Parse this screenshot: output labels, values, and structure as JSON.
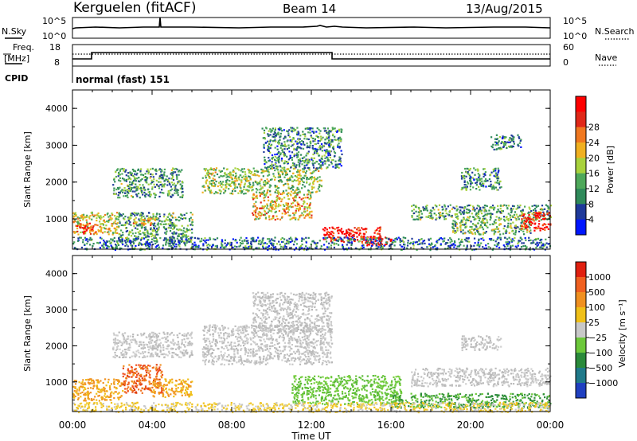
{
  "header": {
    "station": "Kerguelen (fitACF)",
    "beam": "Beam 14",
    "date": "13/Aug/2015"
  },
  "summary_panels": {
    "nsky_label": "N.Sky",
    "nsky_ticks": [
      "10^5",
      "10^0"
    ],
    "nsearch_label": "N.Search",
    "nsearch_ticks": [
      "10^5",
      "10^0"
    ],
    "freq_label_line1": "Freq.",
    "freq_label_line2": "[MHz]",
    "freq_ticks": [
      "18",
      "8"
    ],
    "nave_label": "Nave",
    "nave_ticks": [
      "60",
      "0"
    ],
    "cpid_label": "CPID",
    "cpid_text": "normal (fast) 151"
  },
  "chart_data": [
    {
      "type": "heatmap",
      "quantity": "power",
      "ylabel": "Slant Range [km]",
      "ylim": [
        180,
        4500
      ],
      "yticks": [
        "1000",
        "2000",
        "3000",
        "4000"
      ],
      "xlim_hours": [
        0,
        24
      ],
      "colorbar_label": "Power [dB]",
      "colorbar_ticks": [
        "4",
        "8",
        "12",
        "16",
        "20",
        "24",
        "28"
      ],
      "colorbar_colors": [
        "#0016ff",
        "#1f3a9a",
        "#2f8a5a",
        "#4ea85a",
        "#a8d23c",
        "#f0b020",
        "#f07820",
        "#e02818",
        "#ff0000"
      ],
      "blobs": [
        {
          "t0": 0.0,
          "t1": 2.3,
          "r0": 600,
          "r1": 1200,
          "level": 0.55
        },
        {
          "t0": 0.2,
          "t1": 1.2,
          "r0": 600,
          "r1": 900,
          "level": 0.85
        },
        {
          "t0": 2.3,
          "t1": 6.0,
          "r0": 400,
          "r1": 1200,
          "level": 0.35
        },
        {
          "t0": 3.0,
          "t1": 4.2,
          "r0": 850,
          "r1": 1050,
          "level": 0.6
        },
        {
          "t0": 2.0,
          "t1": 5.5,
          "r0": 1600,
          "r1": 2400,
          "level": 0.35
        },
        {
          "t0": 6.5,
          "t1": 12.5,
          "r0": 1700,
          "r1": 2400,
          "level": 0.45
        },
        {
          "t0": 9.0,
          "t1": 12.0,
          "r0": 1000,
          "r1": 1700,
          "level": 0.6
        },
        {
          "t0": 9.5,
          "t1": 13.5,
          "r0": 2400,
          "r1": 3500,
          "level": 0.3
        },
        {
          "t0": 12.5,
          "t1": 15.5,
          "r0": 400,
          "r1": 800,
          "level": 0.9
        },
        {
          "t0": 14.5,
          "t1": 16.0,
          "r0": 300,
          "r1": 550,
          "level": 0.95
        },
        {
          "t0": 0.0,
          "t1": 24.0,
          "r0": 180,
          "r1": 520,
          "level": 0.25
        },
        {
          "t0": 17.0,
          "t1": 24.0,
          "r0": 1000,
          "r1": 1400,
          "level": 0.35
        },
        {
          "t0": 19.0,
          "t1": 23.0,
          "r0": 600,
          "r1": 1000,
          "level": 0.4
        },
        {
          "t0": 22.5,
          "t1": 24.0,
          "r0": 700,
          "r1": 1200,
          "level": 0.9
        },
        {
          "t0": 19.5,
          "t1": 21.5,
          "r0": 1800,
          "r1": 2400,
          "level": 0.3
        },
        {
          "t0": 21.0,
          "t1": 22.5,
          "r0": 2900,
          "r1": 3300,
          "level": 0.3
        }
      ]
    },
    {
      "type": "heatmap",
      "quantity": "velocity",
      "ylabel": "Slant Range [km]",
      "ylim": [
        180,
        4500
      ],
      "yticks": [
        "1000",
        "2000",
        "3000",
        "4000"
      ],
      "xlim_hours": [
        0,
        24
      ],
      "xticks": [
        "00:00",
        "04:00",
        "08:00",
        "12:00",
        "16:00",
        "20:00",
        "00:00"
      ],
      "xlabel": "Time UT",
      "colorbar_label": "Velocity [m s⁻¹]",
      "colorbar_ticks": [
        "1000",
        "500",
        "100",
        "25",
        "−25",
        "−100",
        "−500",
        "−1000"
      ],
      "colorbar_colors": [
        "#2040c0",
        "#207a8a",
        "#2a8a3a",
        "#6cc83a",
        "#c8c8c8",
        "#f0c018",
        "#f09020",
        "#f06020",
        "#e02010"
      ],
      "blobs": [
        {
          "t0": 0.0,
          "t1": 2.5,
          "r0": 500,
          "r1": 1100,
          "cls": "neg"
        },
        {
          "t0": 2.5,
          "t1": 4.5,
          "r0": 700,
          "r1": 1500,
          "cls": "negstrong"
        },
        {
          "t0": 4.0,
          "t1": 6.0,
          "r0": 600,
          "r1": 1100,
          "cls": "neg"
        },
        {
          "t0": 2.0,
          "t1": 6.0,
          "r0": 1700,
          "r1": 2400,
          "cls": "gray"
        },
        {
          "t0": 6.5,
          "t1": 13.0,
          "r0": 1500,
          "r1": 2600,
          "cls": "gray"
        },
        {
          "t0": 9.0,
          "t1": 13.0,
          "r0": 2400,
          "r1": 3500,
          "cls": "gray"
        },
        {
          "t0": 11.0,
          "t1": 16.5,
          "r0": 400,
          "r1": 1200,
          "cls": "pos"
        },
        {
          "t0": 16.0,
          "t1": 24.0,
          "r0": 300,
          "r1": 700,
          "cls": "posdark"
        },
        {
          "t0": 17.0,
          "t1": 24.0,
          "r0": 900,
          "r1": 1400,
          "cls": "gray"
        },
        {
          "t0": 0.0,
          "t1": 24.0,
          "r0": 180,
          "r1": 450,
          "cls": "negweak"
        },
        {
          "t0": 19.5,
          "t1": 21.5,
          "r0": 1900,
          "r1": 2300,
          "cls": "gray"
        }
      ]
    }
  ]
}
